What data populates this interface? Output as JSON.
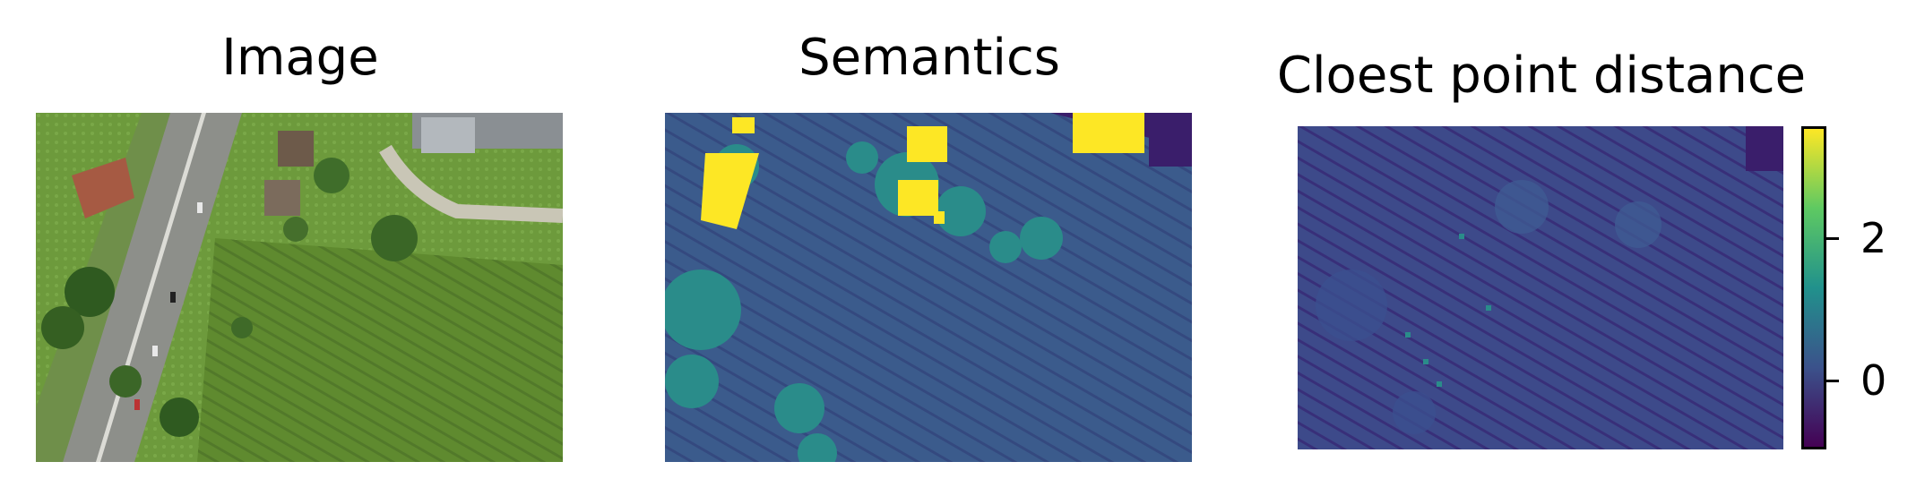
{
  "panels": [
    {
      "title": "Image",
      "kind": "rgb"
    },
    {
      "title": "Semantics",
      "kind": "semantic"
    },
    {
      "title": "Cloest point distance",
      "kind": "distance"
    }
  ],
  "chart_data": {
    "type": "heatmap",
    "colormap": "viridis",
    "colorbar": {
      "min": -1.0,
      "max": 3.4,
      "ticks": [
        0,
        2
      ],
      "tick_labels": [
        "0",
        "2"
      ]
    },
    "colors": {
      "viridis_low": "#440154",
      "viridis_mid": "#21918c",
      "viridis_high": "#fde725",
      "field_green": "#5f8a2f",
      "road_gray": "#8d8f8a"
    }
  }
}
